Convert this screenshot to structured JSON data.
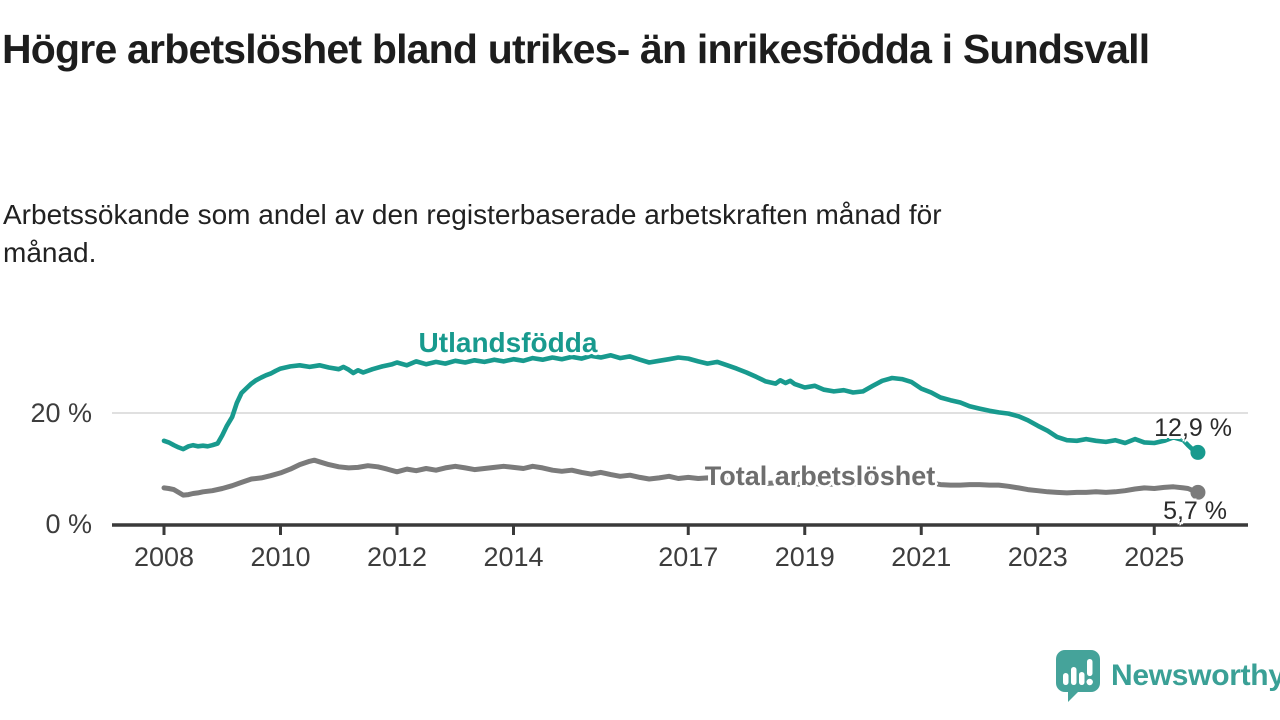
{
  "header": {
    "title": "Högre arbetslöshet bland utrikes- än inrikesfödda i Sundsvall",
    "subtitle_lines": [
      "Arbetssökande som andel av den registerbaserade arbetskraften månad för",
      "månad."
    ]
  },
  "footer": {
    "logo_text": "Newsworthy"
  },
  "colors": {
    "accent_teal": "#189a8e",
    "series_gray": "#7b7b7b",
    "logo_teal": "#45a39a",
    "axis": "#3a3a3a",
    "grid": "#e0e0e0",
    "text_dark": "#1d1d1d"
  },
  "chart_data": {
    "type": "line",
    "title": "Högre arbetslöshet bland utrikes- än inrikesfödda i Sundsvall",
    "subtitle": "Arbetssökande som andel av den registerbaserade arbetskraften månad för månad.",
    "unit": "%",
    "xlim": [
      2007.1,
      2026.6
    ],
    "ylim": [
      0,
      32
    ],
    "grid": "horizontal-only",
    "legend_position": "inline-labels",
    "x_ticks": [
      {
        "year": 2008,
        "label": "2008"
      },
      {
        "year": 2010,
        "label": "2010"
      },
      {
        "year": 2012,
        "label": "2012"
      },
      {
        "year": 2014,
        "label": "2014"
      },
      {
        "year": 2017,
        "label": "2017"
      },
      {
        "year": 2019,
        "label": "2019"
      },
      {
        "year": 2021,
        "label": "2021"
      },
      {
        "year": 2023,
        "label": "2023"
      },
      {
        "year": 2025,
        "label": "2025"
      }
    ],
    "y_ticks": [
      {
        "value": 0,
        "label": "0 %"
      },
      {
        "value": 20,
        "label": "20 %"
      }
    ],
    "series": [
      {
        "name": "Utlandsfödda",
        "color": "#189a8e",
        "end_label": "12,9 %",
        "end_value": 12.9,
        "points": [
          [
            2008,
            15
          ],
          [
            2008.08,
            14.7
          ],
          [
            2008.17,
            14.2
          ],
          [
            2008.25,
            13.8
          ],
          [
            2008.33,
            13.5
          ],
          [
            2008.42,
            14
          ],
          [
            2008.5,
            14.2
          ],
          [
            2008.58,
            14
          ],
          [
            2008.67,
            14.1
          ],
          [
            2008.75,
            14
          ],
          [
            2008.83,
            14.2
          ],
          [
            2008.92,
            14.5
          ],
          [
            2009,
            16
          ],
          [
            2009.08,
            17.7
          ],
          [
            2009.17,
            19.3
          ],
          [
            2009.25,
            21.8
          ],
          [
            2009.33,
            23.6
          ],
          [
            2009.42,
            24.5
          ],
          [
            2009.5,
            25.3
          ],
          [
            2009.58,
            25.9
          ],
          [
            2009.67,
            26.4
          ],
          [
            2009.75,
            26.8
          ],
          [
            2009.83,
            27.1
          ],
          [
            2009.92,
            27.6
          ],
          [
            2010,
            28
          ],
          [
            2010.17,
            28.4
          ],
          [
            2010.33,
            28.6
          ],
          [
            2010.5,
            28.3
          ],
          [
            2010.67,
            28.6
          ],
          [
            2010.83,
            28.2
          ],
          [
            2011,
            27.9
          ],
          [
            2011.08,
            28.3
          ],
          [
            2011.17,
            27.8
          ],
          [
            2011.25,
            27.2
          ],
          [
            2011.33,
            27.7
          ],
          [
            2011.42,
            27.3
          ],
          [
            2011.58,
            27.9
          ],
          [
            2011.75,
            28.4
          ],
          [
            2011.92,
            28.8
          ],
          [
            2012,
            29.1
          ],
          [
            2012.17,
            28.6
          ],
          [
            2012.33,
            29.3
          ],
          [
            2012.5,
            28.8
          ],
          [
            2012.67,
            29.2
          ],
          [
            2012.83,
            28.9
          ],
          [
            2013,
            29.4
          ],
          [
            2013.17,
            29.1
          ],
          [
            2013.33,
            29.5
          ],
          [
            2013.5,
            29.2
          ],
          [
            2013.67,
            29.6
          ],
          [
            2013.83,
            29.3
          ],
          [
            2014,
            29.7
          ],
          [
            2014.17,
            29.4
          ],
          [
            2014.33,
            29.9
          ],
          [
            2014.5,
            29.6
          ],
          [
            2014.67,
            30
          ],
          [
            2014.83,
            29.7
          ],
          [
            2015,
            30.1
          ],
          [
            2015.17,
            29.8
          ],
          [
            2015.33,
            30.3
          ],
          [
            2015.5,
            30
          ],
          [
            2015.67,
            30.4
          ],
          [
            2015.83,
            29.9
          ],
          [
            2016,
            30.2
          ],
          [
            2016.17,
            29.6
          ],
          [
            2016.33,
            29.1
          ],
          [
            2016.5,
            29.4
          ],
          [
            2016.67,
            29.7
          ],
          [
            2016.83,
            30
          ],
          [
            2017,
            29.8
          ],
          [
            2017.17,
            29.3
          ],
          [
            2017.33,
            28.9
          ],
          [
            2017.5,
            29.2
          ],
          [
            2017.67,
            28.6
          ],
          [
            2017.83,
            28
          ],
          [
            2018,
            27.3
          ],
          [
            2018.17,
            26.5
          ],
          [
            2018.33,
            25.7
          ],
          [
            2018.5,
            25.3
          ],
          [
            2018.58,
            25.9
          ],
          [
            2018.67,
            25.4
          ],
          [
            2018.75,
            25.8
          ],
          [
            2018.83,
            25.2
          ],
          [
            2019,
            24.6
          ],
          [
            2019.17,
            24.9
          ],
          [
            2019.33,
            24.2
          ],
          [
            2019.5,
            23.9
          ],
          [
            2019.67,
            24.1
          ],
          [
            2019.83,
            23.7
          ],
          [
            2020,
            23.9
          ],
          [
            2020.17,
            24.9
          ],
          [
            2020.33,
            25.8
          ],
          [
            2020.5,
            26.3
          ],
          [
            2020.67,
            26.1
          ],
          [
            2020.83,
            25.6
          ],
          [
            2021,
            24.4
          ],
          [
            2021.17,
            23.7
          ],
          [
            2021.33,
            22.8
          ],
          [
            2021.5,
            22.3
          ],
          [
            2021.67,
            21.9
          ],
          [
            2021.83,
            21.2
          ],
          [
            2022,
            20.8
          ],
          [
            2022.17,
            20.4
          ],
          [
            2022.33,
            20.1
          ],
          [
            2022.5,
            19.9
          ],
          [
            2022.67,
            19.4
          ],
          [
            2022.83,
            18.7
          ],
          [
            2023,
            17.7
          ],
          [
            2023.17,
            16.8
          ],
          [
            2023.33,
            15.7
          ],
          [
            2023.5,
            15.1
          ],
          [
            2023.67,
            15
          ],
          [
            2023.83,
            15.3
          ],
          [
            2024,
            15
          ],
          [
            2024.17,
            14.8
          ],
          [
            2024.33,
            15.1
          ],
          [
            2024.5,
            14.6
          ],
          [
            2024.67,
            15.3
          ],
          [
            2024.83,
            14.7
          ],
          [
            2025,
            14.6
          ],
          [
            2025.17,
            15
          ],
          [
            2025.33,
            15.6
          ],
          [
            2025.5,
            15.1
          ],
          [
            2025.58,
            14.2
          ],
          [
            2025.67,
            13.3
          ],
          [
            2025.75,
            12.9
          ]
        ]
      },
      {
        "name": "Total arbetslöshet",
        "color": "#7b7b7b",
        "end_label": "5,7 %",
        "end_value": 5.7,
        "points": [
          [
            2008,
            6.5
          ],
          [
            2008.08,
            6.4
          ],
          [
            2008.17,
            6.2
          ],
          [
            2008.25,
            5.7
          ],
          [
            2008.33,
            5.2
          ],
          [
            2008.42,
            5.3
          ],
          [
            2008.5,
            5.5
          ],
          [
            2008.58,
            5.6
          ],
          [
            2008.67,
            5.8
          ],
          [
            2008.83,
            6
          ],
          [
            2009,
            6.4
          ],
          [
            2009.17,
            6.9
          ],
          [
            2009.33,
            7.5
          ],
          [
            2009.5,
            8.1
          ],
          [
            2009.67,
            8.3
          ],
          [
            2009.83,
            8.7
          ],
          [
            2010,
            9.2
          ],
          [
            2010.17,
            9.9
          ],
          [
            2010.33,
            10.7
          ],
          [
            2010.5,
            11.3
          ],
          [
            2010.58,
            11.5
          ],
          [
            2010.67,
            11.2
          ],
          [
            2010.83,
            10.7
          ],
          [
            2011,
            10.3
          ],
          [
            2011.17,
            10.1
          ],
          [
            2011.33,
            10.2
          ],
          [
            2011.5,
            10.5
          ],
          [
            2011.67,
            10.3
          ],
          [
            2011.83,
            9.9
          ],
          [
            2012,
            9.4
          ],
          [
            2012.17,
            9.9
          ],
          [
            2012.33,
            9.6
          ],
          [
            2012.5,
            10
          ],
          [
            2012.67,
            9.7
          ],
          [
            2012.83,
            10.1
          ],
          [
            2013,
            10.4
          ],
          [
            2013.17,
            10.1
          ],
          [
            2013.33,
            9.8
          ],
          [
            2013.5,
            10
          ],
          [
            2013.67,
            10.2
          ],
          [
            2013.83,
            10.4
          ],
          [
            2014,
            10.2
          ],
          [
            2014.17,
            10
          ],
          [
            2014.33,
            10.4
          ],
          [
            2014.5,
            10.1
          ],
          [
            2014.67,
            9.7
          ],
          [
            2014.83,
            9.5
          ],
          [
            2015,
            9.7
          ],
          [
            2015.17,
            9.3
          ],
          [
            2015.33,
            9
          ],
          [
            2015.5,
            9.3
          ],
          [
            2015.67,
            8.9
          ],
          [
            2015.83,
            8.6
          ],
          [
            2016,
            8.8
          ],
          [
            2016.17,
            8.4
          ],
          [
            2016.33,
            8.1
          ],
          [
            2016.5,
            8.3
          ],
          [
            2016.67,
            8.6
          ],
          [
            2016.83,
            8.2
          ],
          [
            2017,
            8.4
          ],
          [
            2017.17,
            8.2
          ],
          [
            2017.33,
            8.3
          ],
          [
            2017.5,
            8.2
          ],
          [
            2017.67,
            8
          ],
          [
            2017.83,
            7.8
          ],
          [
            2018,
            7.6
          ],
          [
            2018.17,
            7.4
          ],
          [
            2018.33,
            7.3
          ],
          [
            2018.5,
            7.4
          ],
          [
            2018.67,
            7.2
          ],
          [
            2018.83,
            7.1
          ],
          [
            2019,
            7.2
          ],
          [
            2019.17,
            7.3
          ],
          [
            2019.33,
            7.1
          ],
          [
            2019.5,
            7.2
          ],
          [
            2019.67,
            7.3
          ],
          [
            2019.83,
            7.2
          ],
          [
            2020,
            7.5
          ],
          [
            2020.17,
            8.2
          ],
          [
            2020.33,
            8.7
          ],
          [
            2020.5,
            8.9
          ],
          [
            2020.67,
            8.6
          ],
          [
            2020.83,
            8.2
          ],
          [
            2021,
            7.9
          ],
          [
            2021.17,
            7.4
          ],
          [
            2021.33,
            7.1
          ],
          [
            2021.5,
            7
          ],
          [
            2021.67,
            7
          ],
          [
            2021.83,
            7.1
          ],
          [
            2022,
            7.1
          ],
          [
            2022.17,
            7
          ],
          [
            2022.33,
            7
          ],
          [
            2022.5,
            6.8
          ],
          [
            2022.67,
            6.5
          ],
          [
            2022.83,
            6.2
          ],
          [
            2023,
            6
          ],
          [
            2023.17,
            5.8
          ],
          [
            2023.33,
            5.7
          ],
          [
            2023.5,
            5.6
          ],
          [
            2023.67,
            5.7
          ],
          [
            2023.83,
            5.7
          ],
          [
            2024,
            5.8
          ],
          [
            2024.17,
            5.7
          ],
          [
            2024.33,
            5.8
          ],
          [
            2024.5,
            6
          ],
          [
            2024.67,
            6.3
          ],
          [
            2024.83,
            6.5
          ],
          [
            2025,
            6.4
          ],
          [
            2025.17,
            6.6
          ],
          [
            2025.33,
            6.7
          ],
          [
            2025.5,
            6.5
          ],
          [
            2025.58,
            6.4
          ],
          [
            2025.67,
            6
          ],
          [
            2025.75,
            5.7
          ]
        ]
      }
    ]
  }
}
